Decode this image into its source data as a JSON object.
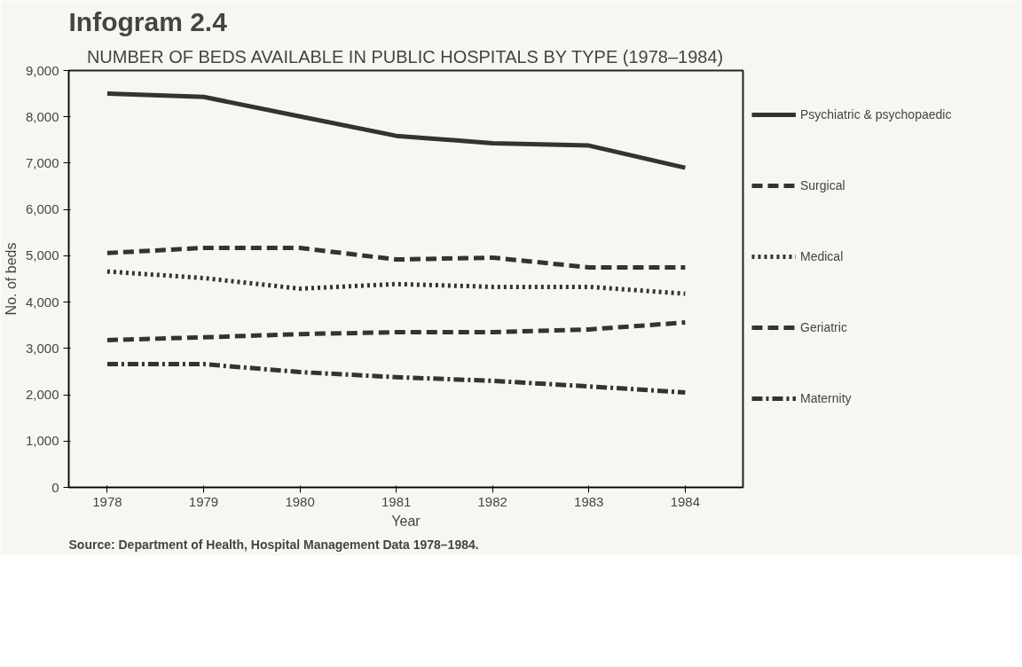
{
  "chart_data": {
    "type": "line",
    "title": "Infogram 2.4",
    "subtitle": "NUMBER OF BEDS AVAILABLE IN PUBLIC HOSPITALS BY TYPE (1978–1984)",
    "xlabel": "Year",
    "ylabel": "No. of beds",
    "x": [
      1978,
      1979,
      1980,
      1981,
      1982,
      1983,
      1984
    ],
    "xlim": [
      1977.6,
      1984.6
    ],
    "xticks": [
      1978,
      1979,
      1980,
      1981,
      1982,
      1983,
      1984
    ],
    "ylim": [
      0,
      9000
    ],
    "yticks": [
      {
        "value": 0,
        "label": "0"
      },
      {
        "value": 1000,
        "label": "1,000"
      },
      {
        "value": 2000,
        "label": "2,000"
      },
      {
        "value": 3000,
        "label": "3,000"
      },
      {
        "value": 4000,
        "label": "4,000"
      },
      {
        "value": 5000,
        "label": "5,000"
      },
      {
        "value": 6000,
        "label": "6,000"
      },
      {
        "value": 7000,
        "label": "7,000"
      },
      {
        "value": 8000,
        "label": "8,000"
      },
      {
        "value": 9000,
        "label": "9,000"
      }
    ],
    "series": [
      {
        "name": "Psychiatric & psychopaedic",
        "color": "#333333",
        "line_style": "solid",
        "values": [
          8500,
          8430,
          8010,
          7590,
          7430,
          7380,
          6900
        ]
      },
      {
        "name": "Surgical",
        "color": "#333333",
        "line_style": "dashed",
        "values": [
          5060,
          5170,
          5170,
          4920,
          4960,
          4750,
          4750
        ]
      },
      {
        "name": "Medical",
        "color": "#333333",
        "line_style": "dotted",
        "values": [
          4660,
          4520,
          4290,
          4390,
          4330,
          4330,
          4180
        ]
      },
      {
        "name": "Geriatric",
        "color": "#333333",
        "line_style": "dashed",
        "values": [
          3180,
          3240,
          3310,
          3350,
          3350,
          3410,
          3560
        ]
      },
      {
        "name": "Maternity",
        "color": "#333333",
        "line_style": "dashdot",
        "values": [
          2660,
          2660,
          2490,
          2380,
          2300,
          2180,
          2050
        ]
      }
    ],
    "grid": false,
    "legend": "right",
    "annotations": [
      "Source: Department of Health, Hospital Management Data 1978–1984."
    ]
  }
}
